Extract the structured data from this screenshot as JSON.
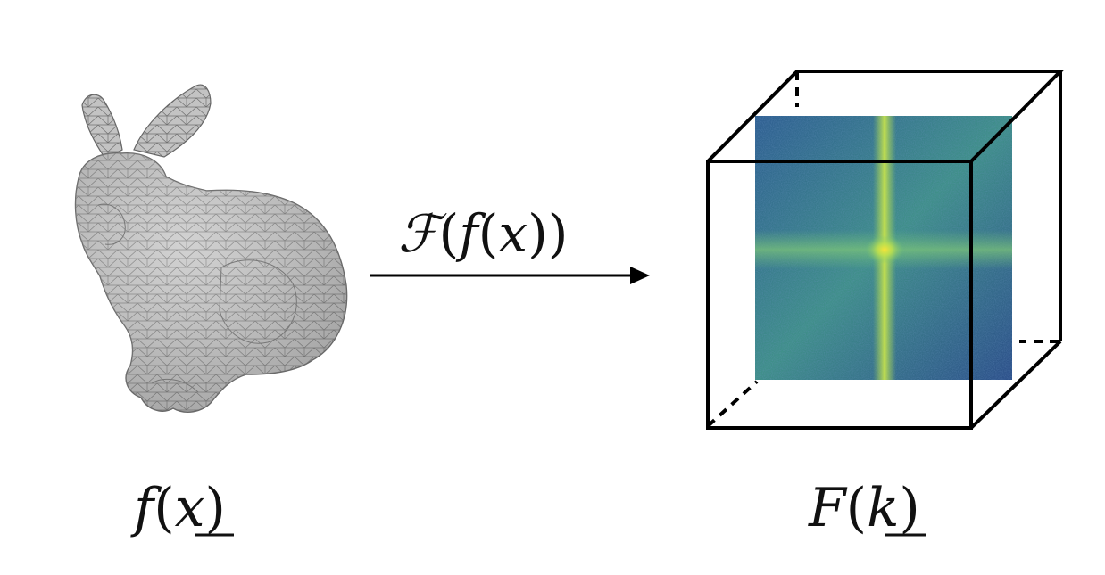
{
  "figure": {
    "left_label": {
      "func": "f",
      "open": "(",
      "var": "x",
      "close": ")"
    },
    "transform_label": {
      "op": "ℱ",
      "open1": "(",
      "func": "f",
      "open2": "(",
      "var": "x",
      "close": "))"
    },
    "right_label": {
      "func": "F",
      "open": "(",
      "var": "k",
      "close": ")"
    }
  },
  "colors": {
    "mesh_fill": "#bdbdbd",
    "mesh_edge": "#6f6f6f",
    "spectrum_low": "#2d4f8c",
    "spectrum_mid": "#3a8e8a",
    "spectrum_high": "#c9e34a",
    "line": "#000000"
  }
}
